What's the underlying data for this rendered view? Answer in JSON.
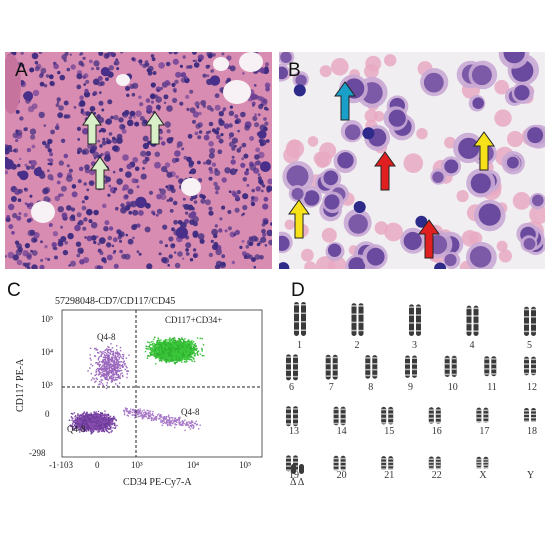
{
  "panels": {
    "a": {
      "label": "A"
    },
    "b": {
      "label": "B"
    },
    "c": {
      "label": "C",
      "title": "57298048-CD7/CD117/CD45",
      "xlabel": "CD34 PE-Cy7-A",
      "ylabel": "CD117 PE-A",
      "quadrants": {
        "ul": "Q4-8",
        "ur": "CD117+CD34+",
        "ll": "Q4-8",
        "lr": "Q4-8"
      },
      "x_ticks": [
        "-1·103",
        "0",
        "10³",
        "10⁴",
        "10⁵"
      ],
      "y_ticks": [
        "10⁵",
        "10⁴",
        "10³",
        "0",
        "-298"
      ]
    },
    "d": {
      "label": "D",
      "rows": [
        [
          "1",
          "2",
          "3",
          "4",
          "5"
        ],
        [
          "6",
          "7",
          "8",
          "9",
          "10",
          "11",
          "12"
        ],
        [
          "13",
          "14",
          "15",
          "16",
          "17",
          "18"
        ],
        [
          "19",
          "20",
          "21",
          "22",
          "X",
          "Y"
        ]
      ],
      "extra_label": "Δ Δ"
    }
  },
  "colors": {
    "stain_pink": "#d98fb3",
    "nucleus_purple": "#4a2f8a",
    "flow_green": "#3cc83c",
    "flow_purple": "#8a4fb0",
    "arrow_green": "#d8efc8",
    "arrow_teal": "#1aa0c8",
    "arrow_red": "#e02020",
    "arrow_yellow": "#f7e21a"
  }
}
